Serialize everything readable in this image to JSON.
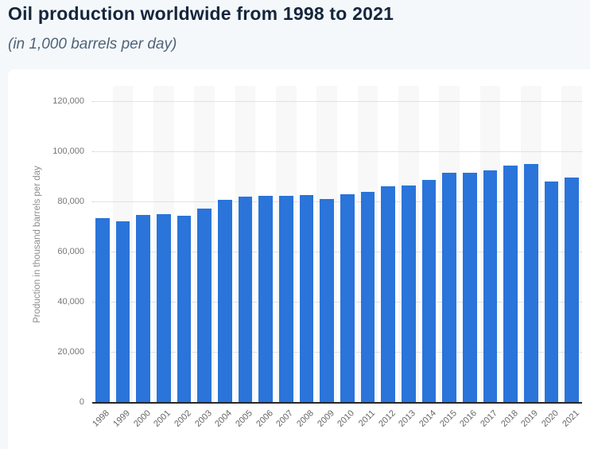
{
  "header": {
    "title": "Oil production worldwide from 1998 to 2021",
    "subtitle": "(in 1,000 barrels per day)"
  },
  "chart_data": {
    "type": "bar",
    "title": "Oil production worldwide from 1998 to 2021",
    "subtitle": "(in 1,000 barrels per day)",
    "categories": [
      "1998",
      "1999",
      "2000",
      "2001",
      "2002",
      "2003",
      "2004",
      "2005",
      "2006",
      "2007",
      "2008",
      "2009",
      "2010",
      "2011",
      "2012",
      "2013",
      "2014",
      "2015",
      "2016",
      "2017",
      "2018",
      "2019",
      "2020",
      "2021"
    ],
    "values": [
      73500,
      72300,
      75000,
      75200,
      74500,
      77600,
      81000,
      82100,
      82600,
      82400,
      83000,
      81300,
      83300,
      84000,
      86200,
      86600,
      88800,
      91700,
      91900,
      92600,
      94700,
      95200,
      88400,
      89900
    ],
    "xlabel": "",
    "ylabel": "Production in thousand barrels per day",
    "ylim": [
      0,
      126350
    ],
    "yticks": [
      0,
      20000,
      40000,
      60000,
      80000,
      100000,
      120000
    ],
    "ytick_labels": [
      "0",
      "20,000",
      "40,000",
      "60,000",
      "80,000",
      "100,000",
      "120,000"
    ],
    "grid": "horizontal-dotted",
    "legend": "none",
    "plot_bands": "alternating columns, odd years shaded",
    "colors": {
      "bar": "#2a74da",
      "band": "#f8f8f8",
      "baseline": "#282828",
      "gridline": "#c9c9c9",
      "axis_text": "#757575",
      "xaxis_text": "#666666",
      "yaxis_title_text": "#8c8c8c",
      "title_text": "#14263c",
      "subtitle_text": "#4e6378",
      "page_bg": "#f5f8fb",
      "card_bg": "#ffffff"
    }
  }
}
